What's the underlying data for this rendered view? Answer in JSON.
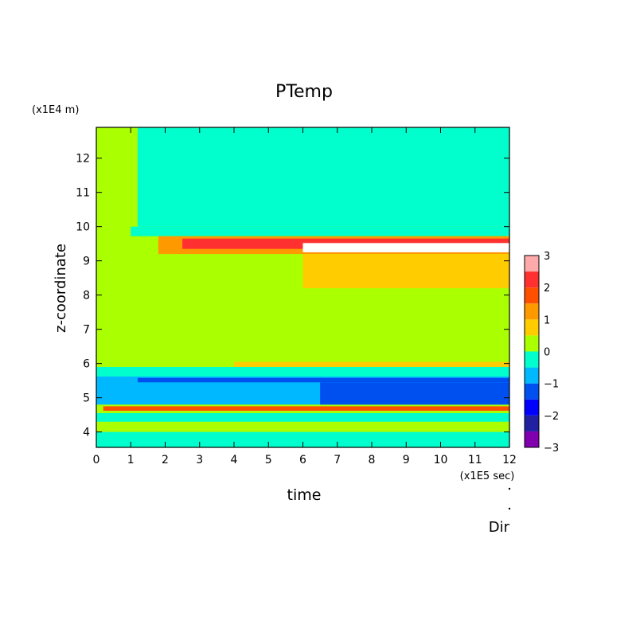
{
  "chart_data": {
    "type": "heatmap",
    "title": "PTemp",
    "xlabel": "time",
    "ylabel": "z-coordinate",
    "x_unit": "(x1E5 sec)",
    "y_unit": "(x1E4 m)",
    "xlim": [
      0,
      12
    ],
    "ylim": [
      3.55,
      12.9
    ],
    "x_ticks": [
      "0",
      "1",
      "2",
      "3",
      "4",
      "5",
      "6",
      "7",
      "8",
      "9",
      "10",
      "11",
      "12"
    ],
    "y_ticks": [
      "4",
      "5",
      "6",
      "7",
      "8",
      "9",
      "10",
      "11",
      "12"
    ],
    "colorbar": {
      "levels": [
        -3,
        -2.5,
        -2,
        -1.5,
        -1,
        -0.5,
        0,
        0.5,
        1,
        1.5,
        2,
        2.5,
        3
      ],
      "tick_labels": [
        "3",
        "2",
        "1",
        "0",
        "−1",
        "−2",
        "−3"
      ],
      "colors": [
        "#8000b0",
        "#2020a0",
        "#0000ff",
        "#0050f0",
        "#00b8ff",
        "#00ffcc",
        "#aaff00",
        "#ffcc00",
        "#ff9900",
        "#ff5000",
        "#ff3030",
        "#ffaaaa"
      ]
    },
    "background_level": 0.25,
    "bands": [
      {
        "z0": 10.0,
        "z1": 12.9,
        "x0": 1.2,
        "x1": 12,
        "value": -0.25
      },
      {
        "z0": 9.72,
        "z1": 10.0,
        "x0": 1.0,
        "x1": 12,
        "value": -0.25
      },
      {
        "z0": 9.2,
        "z1": 9.72,
        "x0": 1.8,
        "x1": 12,
        "value": 1.25
      },
      {
        "z0": 9.35,
        "z1": 9.65,
        "x0": 2.5,
        "x1": 12,
        "value": 2.25
      },
      {
        "z0": 9.25,
        "z1": 9.52,
        "x0": 6.0,
        "x1": 12,
        "value": 3.0
      },
      {
        "z0": 8.2,
        "z1": 9.2,
        "x0": 6.0,
        "x1": 12,
        "value": 0.75
      },
      {
        "z0": 5.9,
        "z1": 6.05,
        "x0": 4.0,
        "x1": 12,
        "value": 0.75
      },
      {
        "z0": 5.62,
        "z1": 5.9,
        "x0": 0,
        "x1": 12,
        "value": -0.25
      },
      {
        "z0": 4.8,
        "z1": 5.62,
        "x0": 0,
        "x1": 12,
        "value": -0.75
      },
      {
        "z0": 5.45,
        "z1": 5.58,
        "x0": 1.2,
        "x1": 12,
        "value": -1.25
      },
      {
        "z0": 4.8,
        "z1": 5.45,
        "x0": 6.5,
        "x1": 12,
        "value": -1.25
      },
      {
        "z0": 4.62,
        "z1": 4.75,
        "x0": 0.2,
        "x1": 12,
        "value": 1.75
      },
      {
        "z0": 4.3,
        "z1": 4.55,
        "x0": 0,
        "x1": 12,
        "value": -0.25
      },
      {
        "z0": 4.05,
        "z1": 4.2,
        "x0": 0,
        "x1": 12,
        "value": 0.25
      },
      {
        "z0": 3.55,
        "z1": 4.0,
        "x0": 0,
        "x1": 12,
        "value": -0.25
      }
    ],
    "annotation": "Dir"
  }
}
